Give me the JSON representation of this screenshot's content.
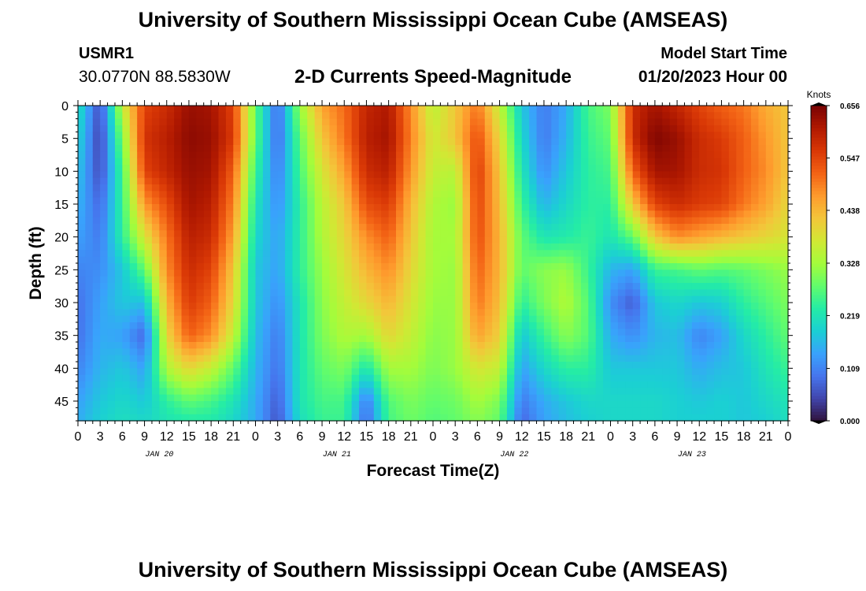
{
  "header": {
    "title": "University of Southern Mississippi Ocean Cube (AMSEAS)",
    "station_id": "USMR1",
    "station_coords": "30.0770N  88.5830W",
    "model_start_label": "Model Start Time",
    "model_start_value": "01/20/2023 Hour 00"
  },
  "footer": {
    "title": "University of Southern Mississippi Ocean Cube (AMSEAS)"
  },
  "chart_data": {
    "type": "heatmap",
    "title": "2-D Currents Speed-Magnitude",
    "xlabel": "Forecast Time(Z)",
    "ylabel": "Depth (ft)",
    "x_range_hours": [
      0,
      96
    ],
    "x_tick_step_hours": 3,
    "x_tick_labels": [
      "0",
      "3",
      "6",
      "9",
      "12",
      "15",
      "18",
      "21",
      "0",
      "3",
      "6",
      "9",
      "12",
      "15",
      "18",
      "21",
      "0",
      "3",
      "6",
      "9",
      "12",
      "15",
      "18",
      "21",
      "0",
      "3",
      "6",
      "9",
      "12",
      "15",
      "18",
      "21",
      "0"
    ],
    "date_labels": [
      {
        "hour": 11,
        "label": "JAN 20"
      },
      {
        "hour": 35,
        "label": "JAN 21"
      },
      {
        "hour": 59,
        "label": "JAN 22"
      },
      {
        "hour": 83,
        "label": "JAN 23"
      }
    ],
    "y_range_ft": [
      0,
      48
    ],
    "y_ticks": [
      0,
      5,
      10,
      15,
      20,
      25,
      30,
      35,
      40,
      45
    ],
    "colorbar": {
      "label": "Knots",
      "min": 0.0,
      "max": 0.656,
      "tick_labels": [
        "0.656",
        "0.547",
        "0.438",
        "0.328",
        "0.219",
        "0.109",
        "0.000"
      ],
      "tick_values": [
        0.656,
        0.547,
        0.438,
        0.328,
        0.219,
        0.109,
        0.0
      ],
      "colors": [
        "#30123b",
        "#4145ab",
        "#4675ed",
        "#39a2fc",
        "#1bcfd4",
        "#24eca6",
        "#61fc6c",
        "#a4fc3b",
        "#d1e834",
        "#f3c63a",
        "#fe9b2d",
        "#f36315",
        "#d93806",
        "#b11901",
        "#7a0403"
      ]
    },
    "speed_knots": {
      "time_hours": [
        0,
        3,
        6,
        9,
        12,
        15,
        18,
        21,
        24,
        27,
        30,
        33,
        36,
        39,
        42,
        45,
        48,
        51,
        54,
        57,
        60,
        63,
        66,
        69,
        72,
        75,
        78,
        81,
        84,
        87,
        90,
        93,
        96
      ],
      "depth_ft": [
        0,
        5,
        10,
        15,
        20,
        25,
        30,
        35,
        40,
        45,
        48
      ],
      "values": [
        [
          0.22,
          0.05,
          0.36,
          0.55,
          0.58,
          0.63,
          0.62,
          0.55,
          0.28,
          0.08,
          0.32,
          0.46,
          0.51,
          0.59,
          0.61,
          0.48,
          0.35,
          0.42,
          0.5,
          0.36,
          0.18,
          0.1,
          0.15,
          0.26,
          0.3,
          0.58,
          0.62,
          0.59,
          0.55,
          0.52,
          0.5,
          0.45,
          0.42
        ],
        [
          0.2,
          0.04,
          0.3,
          0.57,
          0.6,
          0.64,
          0.63,
          0.56,
          0.28,
          0.08,
          0.28,
          0.42,
          0.5,
          0.6,
          0.62,
          0.49,
          0.37,
          0.42,
          0.54,
          0.4,
          0.2,
          0.1,
          0.16,
          0.25,
          0.28,
          0.58,
          0.65,
          0.63,
          0.58,
          0.56,
          0.52,
          0.47,
          0.42
        ],
        [
          0.18,
          0.05,
          0.26,
          0.55,
          0.59,
          0.63,
          0.62,
          0.52,
          0.25,
          0.1,
          0.26,
          0.38,
          0.46,
          0.58,
          0.6,
          0.47,
          0.36,
          0.35,
          0.56,
          0.42,
          0.22,
          0.12,
          0.18,
          0.24,
          0.26,
          0.52,
          0.62,
          0.62,
          0.58,
          0.57,
          0.52,
          0.48,
          0.42
        ],
        [
          0.16,
          0.08,
          0.25,
          0.47,
          0.54,
          0.62,
          0.6,
          0.49,
          0.22,
          0.12,
          0.24,
          0.35,
          0.42,
          0.54,
          0.56,
          0.44,
          0.34,
          0.32,
          0.55,
          0.43,
          0.25,
          0.16,
          0.2,
          0.24,
          0.24,
          0.42,
          0.55,
          0.58,
          0.56,
          0.55,
          0.5,
          0.46,
          0.4
        ],
        [
          0.14,
          0.1,
          0.24,
          0.38,
          0.5,
          0.6,
          0.58,
          0.46,
          0.2,
          0.14,
          0.24,
          0.34,
          0.4,
          0.48,
          0.52,
          0.42,
          0.33,
          0.33,
          0.54,
          0.44,
          0.28,
          0.22,
          0.23,
          0.25,
          0.22,
          0.28,
          0.42,
          0.48,
          0.46,
          0.44,
          0.42,
          0.4,
          0.38
        ],
        [
          0.11,
          0.12,
          0.18,
          0.28,
          0.48,
          0.58,
          0.55,
          0.42,
          0.18,
          0.14,
          0.24,
          0.32,
          0.38,
          0.44,
          0.48,
          0.4,
          0.33,
          0.32,
          0.52,
          0.44,
          0.28,
          0.31,
          0.32,
          0.25,
          0.16,
          0.14,
          0.25,
          0.26,
          0.28,
          0.27,
          0.28,
          0.3,
          0.32
        ],
        [
          0.09,
          0.14,
          0.18,
          0.17,
          0.44,
          0.56,
          0.52,
          0.4,
          0.18,
          0.12,
          0.22,
          0.31,
          0.36,
          0.4,
          0.44,
          0.38,
          0.32,
          0.32,
          0.5,
          0.43,
          0.24,
          0.3,
          0.34,
          0.27,
          0.12,
          0.07,
          0.18,
          0.2,
          0.18,
          0.19,
          0.24,
          0.27,
          0.3
        ],
        [
          0.09,
          0.15,
          0.14,
          0.08,
          0.4,
          0.52,
          0.48,
          0.36,
          0.17,
          0.1,
          0.22,
          0.3,
          0.34,
          0.33,
          0.4,
          0.36,
          0.31,
          0.32,
          0.46,
          0.41,
          0.18,
          0.25,
          0.31,
          0.27,
          0.15,
          0.12,
          0.16,
          0.17,
          0.11,
          0.14,
          0.2,
          0.24,
          0.28
        ],
        [
          0.11,
          0.16,
          0.18,
          0.14,
          0.34,
          0.4,
          0.36,
          0.28,
          0.16,
          0.09,
          0.22,
          0.28,
          0.3,
          0.22,
          0.33,
          0.33,
          0.3,
          0.32,
          0.38,
          0.36,
          0.14,
          0.2,
          0.24,
          0.24,
          0.18,
          0.18,
          0.18,
          0.18,
          0.15,
          0.17,
          0.18,
          0.22,
          0.25
        ],
        [
          0.14,
          0.18,
          0.2,
          0.18,
          0.24,
          0.28,
          0.26,
          0.22,
          0.15,
          0.07,
          0.22,
          0.26,
          0.26,
          0.1,
          0.27,
          0.3,
          0.28,
          0.29,
          0.33,
          0.3,
          0.1,
          0.15,
          0.18,
          0.2,
          0.2,
          0.2,
          0.2,
          0.19,
          0.18,
          0.19,
          0.18,
          0.2,
          0.22
        ],
        [
          0.15,
          0.19,
          0.21,
          0.2,
          0.22,
          0.23,
          0.23,
          0.2,
          0.15,
          0.06,
          0.21,
          0.25,
          0.25,
          0.08,
          0.26,
          0.29,
          0.27,
          0.28,
          0.31,
          0.28,
          0.08,
          0.14,
          0.17,
          0.19,
          0.2,
          0.2,
          0.2,
          0.19,
          0.19,
          0.19,
          0.18,
          0.19,
          0.21
        ]
      ]
    }
  }
}
